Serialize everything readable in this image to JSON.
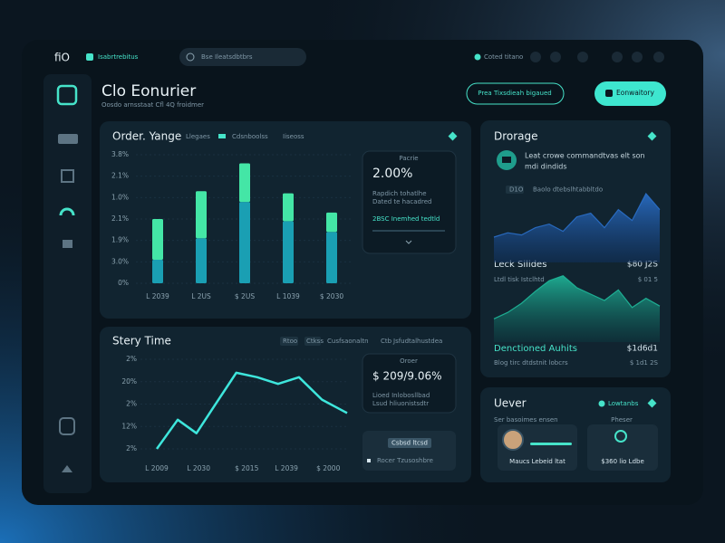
{
  "topbar": {
    "brand": "ﬁO",
    "workspace": "Isabrtrebitus",
    "search": "Bse Ileatsdbtbrs",
    "status": "Coted titano"
  },
  "header": {
    "title": "Clo Eonurier",
    "subtitle": "Oosdo arnsstaat Cfl 4Q froidmer",
    "secondary_button": "Prea Tixsdieah bigaued",
    "primary_button": "Eonwaitory"
  },
  "order_panel": {
    "title": "Order. Yange",
    "tabs": [
      "Llegaes",
      "Cdsnboolss",
      "Iiseoss"
    ],
    "chart": {
      "type": "bar",
      "categories": [
        "L 2039",
        "L 2US",
        "$ 2US",
        "L 1039",
        "$ 2030"
      ],
      "series": [
        {
          "color": "#1a9fb3",
          "values": [
            1.1,
            2.1,
            3.8,
            2.9,
            2.4
          ]
        },
        {
          "color": "#44e6a6",
          "values": [
            1.9,
            2.2,
            1.8,
            1.3,
            0.9
          ]
        }
      ],
      "ylim": [
        0,
        6
      ],
      "yticks": [
        {
          "value": 0,
          "label": "0%"
        },
        {
          "value": 1,
          "label": "3.0%"
        },
        {
          "value": 2,
          "label": "1.9%"
        },
        {
          "value": 3,
          "label": "2.1%"
        },
        {
          "value": 4,
          "label": "1.0%"
        },
        {
          "value": 5,
          "label": "2.1%"
        },
        {
          "value": 6,
          "label": "3.8%"
        }
      ]
    },
    "card": {
      "label": "Pacrie",
      "value": "2.00%",
      "line_1": "Rapdich tohatlhe",
      "line_2": "Dated te hacadred",
      "link": "2BSC Inemhed tedtld"
    }
  },
  "story_panel": {
    "title": "Stery Time",
    "tabs": [
      "Rtoo",
      "Ctkss",
      "Cusfsaonaltn",
      "Ctb",
      "Jsfudtalhustdea"
    ],
    "chart": {
      "type": "line",
      "color": "#3ee6dc",
      "x": [
        0,
        1,
        1.9,
        2.6,
        3.8,
        4.8,
        5.8,
        6.8,
        7.9,
        9.1
      ],
      "values": [
        0,
        1.3,
        0.7,
        1.7,
        3.4,
        3.2,
        2.9,
        3.2,
        2.2,
        1.6
      ],
      "xlim": [
        0,
        9.1
      ],
      "ylim": [
        0,
        4
      ],
      "xticks": [
        {
          "value": 0,
          "label": "L 2009"
        },
        {
          "value": 2,
          "label": "L 2030"
        },
        {
          "value": 4.3,
          "label": "$ 2015"
        },
        {
          "value": 6.2,
          "label": "L 2039"
        },
        {
          "value": 8.2,
          "label": "$ 2000"
        }
      ],
      "yticks": [
        {
          "value": 0,
          "label": "2%"
        },
        {
          "value": 1,
          "label": "12%"
        },
        {
          "value": 2,
          "label": "2%"
        },
        {
          "value": 3,
          "label": "20%"
        },
        {
          "value": 4,
          "label": "2%"
        }
      ]
    },
    "card": {
      "label": "Oroer",
      "value": "$ 209/9.06%",
      "line_1": "Lioed Inlobosllbad",
      "line_2": "Lsud hliuonistsdtr"
    },
    "footer_card": {
      "button": "Csbsd ltcsd",
      "text": "Rocer Tzusoshbre"
    }
  },
  "storage_panel": {
    "title": "Drorage",
    "text_1": "Leat crowe commandtvas elt son",
    "text_2": "mdi dindids",
    "legend": [
      "D1O",
      "Baolo dtebslhtabbltdo"
    ],
    "area_1": {
      "type": "area",
      "color": "#2a6fc9",
      "ylim": [
        0,
        100
      ],
      "values": [
        35,
        41,
        38,
        48,
        53,
        43,
        63,
        68,
        48,
        73,
        58,
        95,
        73
      ],
      "label": "Leck Silides",
      "value": "$80 J2S"
    },
    "caption": "Ltdl tisk Istclhtd",
    "caption_value": "$ 01 5",
    "area_2": {
      "type": "area",
      "color": "#1fb89a",
      "ylim": [
        0,
        100
      ],
      "values": [
        33,
        42,
        55,
        72,
        87,
        94,
        77,
        68,
        59,
        74,
        49,
        62,
        51
      ],
      "label": "Denctioned Auhits",
      "value": "$1d6d1"
    },
    "footer": "Blog tirc dtdstnit lobcrs",
    "footer_value": "$ 1d1 2S"
  },
  "owner_panel": {
    "title": "Uever",
    "status": "Lowtanbs",
    "subtitle": "Ser basoimes ensen",
    "label": "Pheser",
    "person": "Maucs Lebeid ltat",
    "amount": "$360 lio Ldbe"
  }
}
